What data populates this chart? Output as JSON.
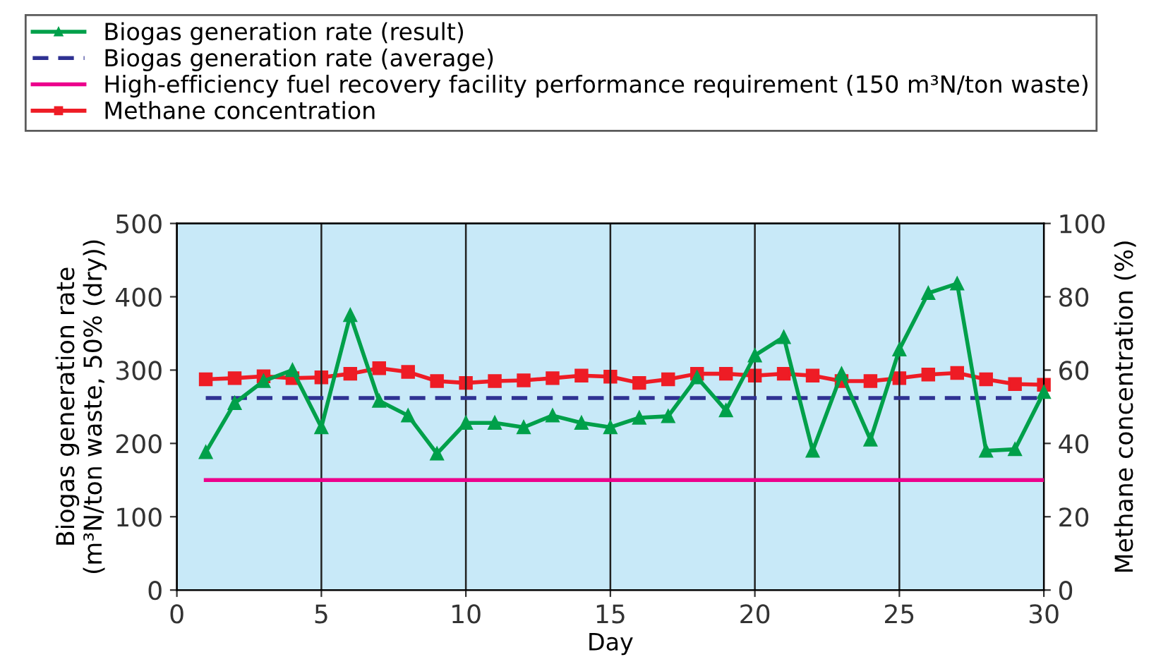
{
  "chart_data": {
    "type": "line",
    "xlabel": "Day",
    "ylabel": "Biogas generation rate\n(m³N/ton waste, 50% (dry))",
    "y2label": "Methane concentration (%)",
    "x": [
      1,
      2,
      3,
      4,
      5,
      6,
      7,
      8,
      9,
      10,
      11,
      12,
      13,
      14,
      15,
      16,
      17,
      18,
      19,
      20,
      21,
      22,
      23,
      24,
      25,
      26,
      27,
      28,
      29,
      30
    ],
    "series": [
      {
        "name": "Biogas generation rate (result)",
        "color": "#00a04a",
        "marker": "triangle",
        "values": [
          188,
          255,
          285,
          300,
          222,
          375,
          258,
          238,
          186,
          228,
          228,
          222,
          238,
          228,
          222,
          235,
          237,
          290,
          245,
          320,
          345,
          190,
          295,
          205,
          328,
          405,
          418,
          190,
          192,
          270
        ]
      },
      {
        "name": "Methane concentration",
        "color": "#ee1c25",
        "marker": "square",
        "axis": "y2",
        "values": [
          57.5,
          57.8,
          58.3,
          57.8,
          58,
          59,
          60.5,
          59.5,
          57,
          56.5,
          57,
          57.2,
          57.8,
          58.5,
          58.2,
          56.5,
          57.5,
          59,
          59,
          58.5,
          59,
          58.5,
          57,
          57,
          57.8,
          58.8,
          59.2,
          57.5,
          56.2,
          56
        ]
      }
    ],
    "ref_lines": [
      {
        "axis": "y",
        "value": 262,
        "label": "Biogas generation rate (average)",
        "color": "#2e3192",
        "line_style": "dashed"
      },
      {
        "axis": "y",
        "value": 150,
        "label": "High-efficiency fuel recovery facility performance requirement (150 m³N/ton waste)",
        "color": "#ec008c",
        "line_style": "solid"
      }
    ],
    "xlim": [
      0,
      30
    ],
    "xticks": [
      0,
      5,
      10,
      15,
      20,
      25,
      30
    ],
    "ylim": [
      0,
      500
    ],
    "yticks": [
      0,
      100,
      200,
      300,
      400,
      500
    ],
    "y2lim": [
      0,
      100
    ],
    "y2ticks": [
      0,
      20,
      40,
      60,
      80,
      100
    ],
    "grid": "x",
    "legend": "top"
  }
}
